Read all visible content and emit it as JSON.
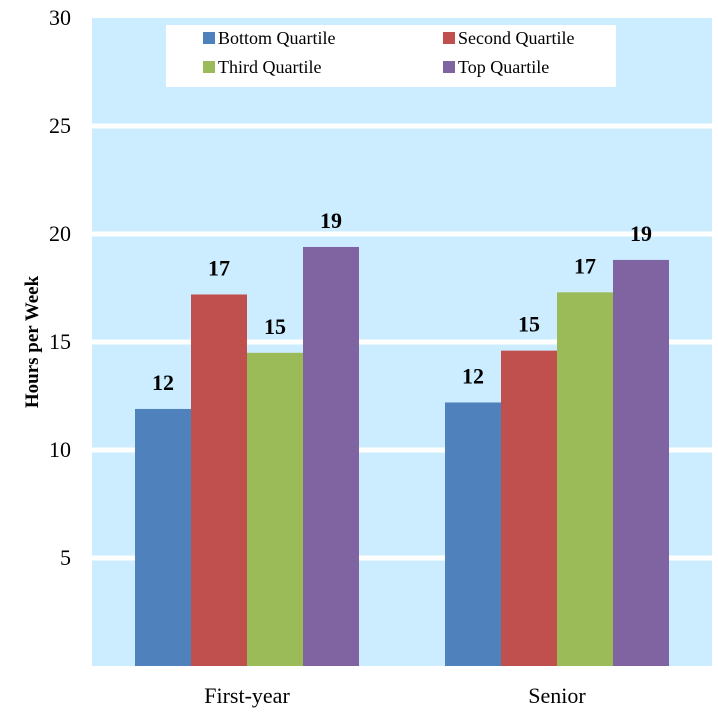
{
  "chart_data": {
    "type": "bar",
    "categories": [
      "First-year",
      "Senior"
    ],
    "series": [
      {
        "name": "Bottom Quartile",
        "values": [
          11.9,
          12.2
        ],
        "labels": [
          "12",
          "12"
        ],
        "color": "#4F81BD"
      },
      {
        "name": "Second Quartile",
        "values": [
          17.2,
          14.6
        ],
        "labels": [
          "17",
          "15"
        ],
        "color": "#C0504D"
      },
      {
        "name": "Third Quartile",
        "values": [
          14.5,
          17.3
        ],
        "labels": [
          "15",
          "17"
        ],
        "color": "#9BBB59"
      },
      {
        "name": "Top Quartile",
        "values": [
          19.4,
          18.8
        ],
        "labels": [
          "19",
          "19"
        ],
        "color": "#8064A2"
      }
    ],
    "ylabel": "Hours per Week",
    "xlabel": "",
    "ylim": [
      0,
      30
    ],
    "yticks": [
      "5",
      "10",
      "15",
      "20",
      "25",
      "30"
    ],
    "grid": true,
    "legend": "top-center",
    "plot_background": "#CCECFF",
    "gridline_color": "#FFFFFF"
  }
}
